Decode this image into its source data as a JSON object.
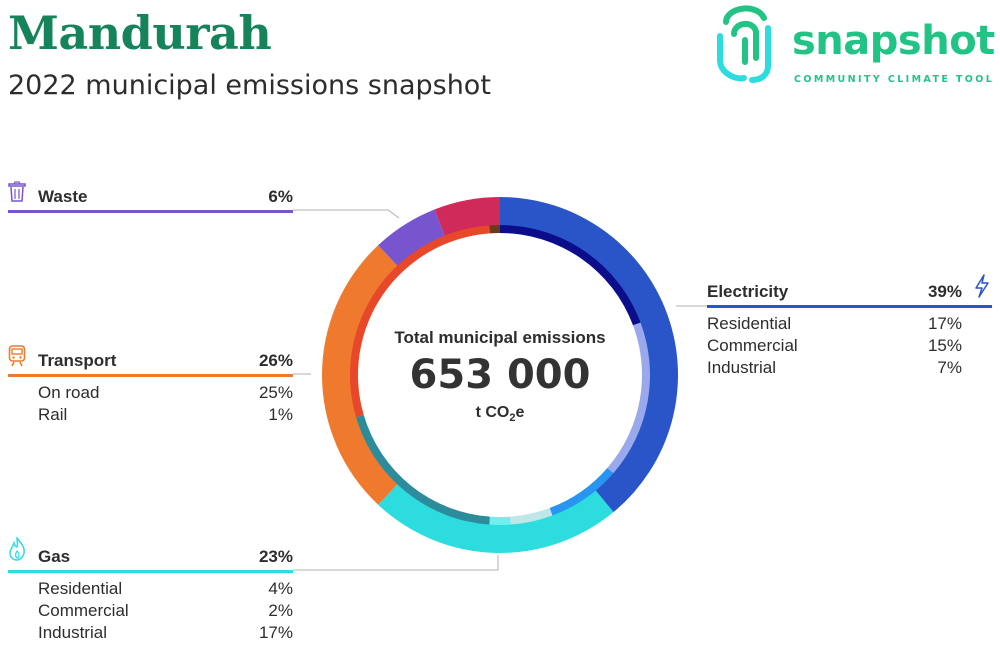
{
  "header": {
    "title": "Mandurah",
    "subtitle": "2022 municipal emissions snapshot"
  },
  "logo": {
    "wordmark": "snapshot",
    "tagline": "COMMUNITY CLIMATE TOOL"
  },
  "center": {
    "label": "Total municipal emissions",
    "value": "653 000",
    "unit_prefix": "t CO",
    "unit_sub": "2",
    "unit_suffix": "e"
  },
  "categories": {
    "waste": {
      "label": "Waste",
      "pct": "6%",
      "icon": "trash-icon",
      "color": "#7755cf"
    },
    "transport": {
      "label": "Transport",
      "pct": "26%",
      "icon": "train-icon",
      "color": "#ef7a2e",
      "subs": [
        {
          "label": "On road",
          "pct": "25%"
        },
        {
          "label": "Rail",
          "pct": "1%"
        }
      ]
    },
    "gas": {
      "label": "Gas",
      "pct": "23%",
      "icon": "flame-icon",
      "color": "#2cdcde",
      "subs": [
        {
          "label": "Residential",
          "pct": "4%"
        },
        {
          "label": "Commercial",
          "pct": "2%"
        },
        {
          "label": "Industrial",
          "pct": "17%"
        }
      ]
    },
    "electricity": {
      "label": "Electricity",
      "pct": "39%",
      "icon": "lightning-icon",
      "color": "#2a55c9",
      "subs": [
        {
          "label": "Residential",
          "pct": "17%"
        },
        {
          "label": "Commercial",
          "pct": "15%"
        },
        {
          "label": "Industrial",
          "pct": "7%"
        }
      ]
    }
  },
  "chart_data": {
    "type": "pie",
    "total": 653000,
    "unit": "t CO2e",
    "outer": [
      {
        "name": "Electricity",
        "value": 39,
        "color": "#2a55c9"
      },
      {
        "name": "Gas",
        "value": 23,
        "color": "#2cdcde"
      },
      {
        "name": "Transport",
        "value": 26,
        "color": "#ef7a2e"
      },
      {
        "name": "Waste",
        "value": 6,
        "color": "#7755cf"
      },
      {
        "name": "",
        "value": 6,
        "color": "#cf2a5a"
      }
    ],
    "inner": [
      {
        "name": "Residential",
        "value": 17,
        "color": "#0b0d8a"
      },
      {
        "name": "Commercial",
        "value": 15,
        "color": "#9aa8ec"
      },
      {
        "name": "Industrial",
        "value": 7,
        "color": "#2895f2"
      },
      {
        "name": "Residential",
        "value": 4,
        "color": "#bfe7e8"
      },
      {
        "name": "Commercial",
        "value": 2,
        "color": "#6ff0ef"
      },
      {
        "name": "Industrial",
        "value": 17,
        "color": "#2c8c9c"
      },
      {
        "name": "On road",
        "value": 25,
        "color": "#e8482a"
      },
      {
        "name": "Rail",
        "value": 1,
        "color": "#6b3a1c"
      }
    ]
  }
}
